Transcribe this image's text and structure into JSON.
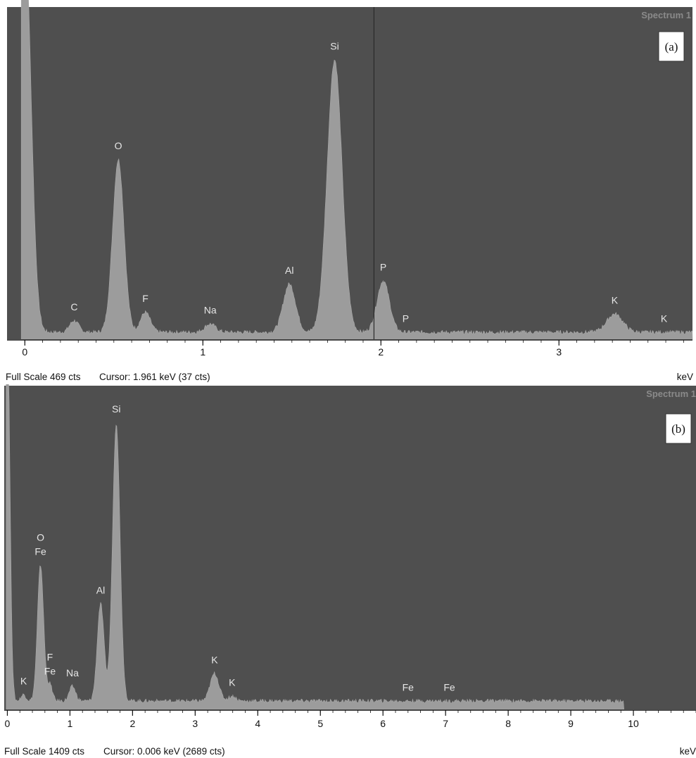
{
  "theme": {
    "plot_bg": "#4f4f4f",
    "spectrum_fill": "#9c9c9c",
    "label_color": "#e6e6e6",
    "cursor_line": "#2a2a2a"
  },
  "chart_data": [
    {
      "type": "area",
      "panel_label": "(a)",
      "title": "Spectrum 1",
      "xlabel": "keV",
      "xlim": [
        -0.1,
        3.75
      ],
      "xticks": [
        0,
        1,
        2,
        3
      ],
      "full_scale": "Full Scale 469 cts",
      "cursor": "Cursor: 1.961 keV (37 cts)",
      "cursor_kev": 1.961,
      "peaks": [
        {
          "label": "C",
          "kev": 0.277,
          "height": 0.035,
          "sigma": 0.025
        },
        {
          "label": "O",
          "kev": 0.525,
          "height": 0.52,
          "sigma": 0.032
        },
        {
          "label": "F",
          "kev": 0.677,
          "height": 0.06,
          "sigma": 0.028
        },
        {
          "label": "Na",
          "kev": 1.041,
          "height": 0.025,
          "sigma": 0.03
        },
        {
          "label": "Al",
          "kev": 1.486,
          "height": 0.145,
          "sigma": 0.035
        },
        {
          "label": "Si",
          "kev": 1.74,
          "height": 0.82,
          "sigma": 0.042
        },
        {
          "label": "P",
          "kev": 2.013,
          "height": 0.155,
          "sigma": 0.035
        },
        {
          "label": "P",
          "kev": 2.139,
          "height": 0.0,
          "sigma": 0.03
        },
        {
          "label": "K",
          "kev": 3.313,
          "height": 0.055,
          "sigma": 0.045
        },
        {
          "label": "K",
          "kev": 3.59,
          "height": 0.0,
          "sigma": 0.04
        }
      ]
    },
    {
      "type": "area",
      "panel_label": "(b)",
      "title": "Spectrum 1",
      "xlabel": "keV",
      "xlim": [
        -0.05,
        11.0
      ],
      "xticks": [
        0,
        1,
        2,
        3,
        4,
        5,
        6,
        7,
        8,
        9,
        10
      ],
      "full_scale": "Full Scale 1409 cts",
      "cursor": "Cursor: 0.006 keV (2689 cts)",
      "peaks": [
        {
          "label": "K",
          "kev": 0.26,
          "height": 0.02,
          "sigma": 0.04
        },
        {
          "label": "O\nFe",
          "kev": 0.53,
          "height": 0.42,
          "sigma": 0.05
        },
        {
          "label": "F\nFe",
          "kev": 0.68,
          "height": 0.05,
          "sigma": 0.04
        },
        {
          "label": "Na",
          "kev": 1.04,
          "height": 0.045,
          "sigma": 0.05
        },
        {
          "label": "Al",
          "kev": 1.49,
          "height": 0.3,
          "sigma": 0.055
        },
        {
          "label": "Si",
          "kev": 1.74,
          "height": 0.86,
          "sigma": 0.06
        },
        {
          "label": "K",
          "kev": 3.31,
          "height": 0.085,
          "sigma": 0.07
        },
        {
          "label": "K",
          "kev": 3.59,
          "height": 0.015,
          "sigma": 0.06
        },
        {
          "label": "Fe",
          "kev": 6.4,
          "height": 0.0,
          "sigma": 0.08
        },
        {
          "label": "Fe",
          "kev": 7.06,
          "height": 0.0,
          "sigma": 0.08
        }
      ]
    }
  ]
}
